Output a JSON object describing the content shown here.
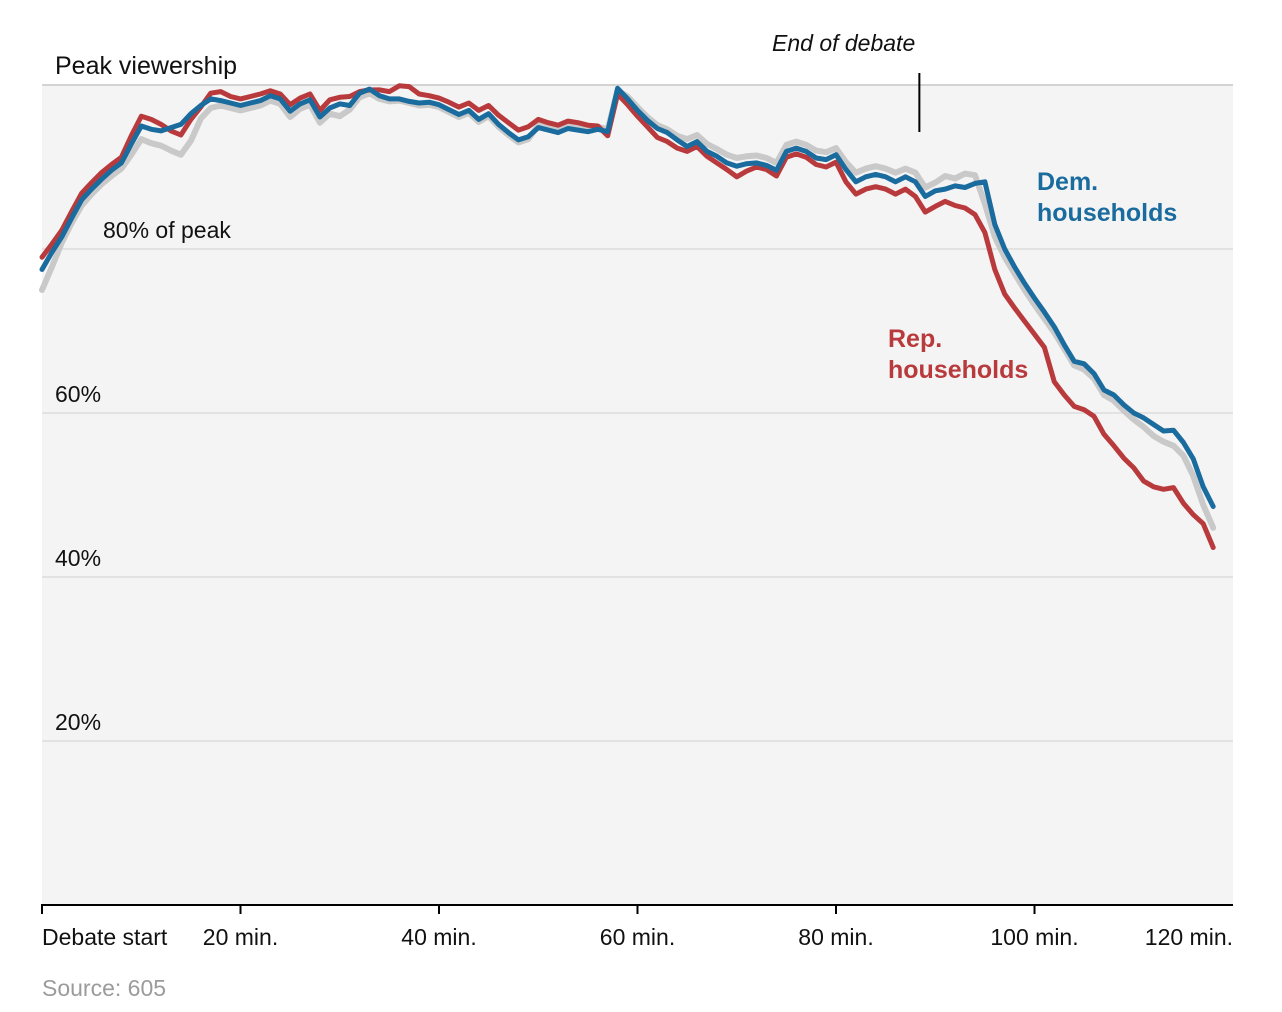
{
  "title": "Peak viewership",
  "annotation": {
    "label": "End of debate",
    "x_minute": 88.4
  },
  "legend": {
    "dem": "Dem.\nhouseholds",
    "rep": "Rep.\nhouseholds"
  },
  "source": "Source: 605",
  "colors": {
    "dem": "#1a6b9e",
    "rep": "#b93a3c",
    "gray": "#c9c9c9",
    "plot_bg": "#f4f4f4",
    "grid": "#dcdcdc",
    "grid_top": "#c6c6c6",
    "axis": "#000000",
    "text": "#111111",
    "source_text": "#9b9b9b"
  },
  "chart_data": {
    "type": "line",
    "title": "Peak viewership",
    "x_unit": "min",
    "xlim": [
      0,
      120
    ],
    "ylim": [
      0,
      100
    ],
    "grid": true,
    "x_minutes": {
      "start": 0,
      "step": 1,
      "end": 118
    },
    "y_ticks": [
      {
        "value": 80,
        "label": "80% of peak"
      },
      {
        "value": 60,
        "label": "60%"
      },
      {
        "value": 40,
        "label": "40%"
      },
      {
        "value": 20,
        "label": "20%"
      }
    ],
    "x_ticks": [
      {
        "value": 0,
        "label": "Debate start",
        "tick": true,
        "align": "left"
      },
      {
        "value": 20,
        "label": "20 min.",
        "tick": true,
        "align": "center"
      },
      {
        "value": 40,
        "label": "40 min.",
        "tick": true,
        "align": "center"
      },
      {
        "value": 60,
        "label": "60 min.",
        "tick": true,
        "align": "center"
      },
      {
        "value": 80,
        "label": "80 min.",
        "tick": true,
        "align": "center"
      },
      {
        "value": 100,
        "label": "100 min.",
        "tick": true,
        "align": "center"
      },
      {
        "value": 120,
        "label": "120 min.",
        "tick": false,
        "align": "right"
      }
    ],
    "annotations": [
      {
        "label": "End of debate",
        "x": 88.4
      }
    ],
    "series": [
      {
        "name": "Dem. households",
        "color_key": "dem",
        "values": [
          77.5,
          79.6,
          81.5,
          83.8,
          86.0,
          87.3,
          88.5,
          89.6,
          90.5,
          92.8,
          95.0,
          94.6,
          94.4,
          94.8,
          95.2,
          96.5,
          97.5,
          98.3,
          98.1,
          97.8,
          97.5,
          97.8,
          98.1,
          98.7,
          98.3,
          96.8,
          97.7,
          98.2,
          96.1,
          97.2,
          97.7,
          97.5,
          99.0,
          99.5,
          98.7,
          98.3,
          98.3,
          98.0,
          97.8,
          97.9,
          97.6,
          97.0,
          96.4,
          96.9,
          95.8,
          96.5,
          95.2,
          94.2,
          93.3,
          93.7,
          94.8,
          94.5,
          94.2,
          94.7,
          94.5,
          94.3,
          94.6,
          94.3,
          99.6,
          98.3,
          96.9,
          95.7,
          94.7,
          94.2,
          93.3,
          92.5,
          93.1,
          91.9,
          91.3,
          90.5,
          90.1,
          90.4,
          90.5,
          90.2,
          89.6,
          91.9,
          92.3,
          91.9,
          91.1,
          90.9,
          91.5,
          89.7,
          88.2,
          88.8,
          89.1,
          88.8,
          88.2,
          88.8,
          88.2,
          86.4,
          87.1,
          87.3,
          87.7,
          87.5,
          88.0,
          88.2,
          83.0,
          80.0,
          77.8,
          75.8,
          74.0,
          72.3,
          70.5,
          68.3,
          66.3,
          66.0,
          64.8,
          62.8,
          62.2,
          61.0,
          60.0,
          59.4,
          58.6,
          57.8,
          57.9,
          56.4,
          54.4,
          51.0,
          48.6
        ]
      },
      {
        "name": "Rep. households",
        "color_key": "rep",
        "values": [
          79.0,
          80.6,
          82.3,
          84.6,
          86.8,
          88.1,
          89.3,
          90.3,
          91.2,
          93.8,
          96.2,
          95.8,
          95.2,
          94.4,
          93.9,
          95.8,
          97.3,
          99.0,
          99.2,
          98.6,
          98.3,
          98.6,
          98.9,
          99.3,
          98.9,
          97.6,
          98.4,
          98.9,
          96.9,
          98.2,
          98.5,
          98.6,
          99.2,
          99.4,
          99.4,
          99.2,
          99.9,
          99.8,
          98.9,
          98.7,
          98.4,
          97.9,
          97.3,
          97.8,
          96.9,
          97.5,
          96.3,
          95.4,
          94.5,
          94.9,
          95.8,
          95.4,
          95.1,
          95.6,
          95.4,
          95.1,
          95.0,
          93.8,
          98.9,
          97.6,
          96.2,
          94.9,
          93.6,
          93.1,
          92.3,
          91.9,
          92.5,
          91.3,
          90.5,
          89.7,
          88.8,
          89.5,
          90.0,
          89.7,
          88.9,
          91.2,
          91.6,
          91.2,
          90.3,
          90.0,
          90.6,
          88.2,
          86.7,
          87.3,
          87.6,
          87.3,
          86.7,
          87.3,
          86.4,
          84.5,
          85.2,
          85.8,
          85.3,
          85.0,
          84.2,
          82.0,
          77.5,
          74.5,
          72.8,
          71.2,
          69.6,
          68.0,
          63.8,
          62.2,
          60.8,
          60.4,
          59.6,
          57.4,
          56.0,
          54.5,
          53.3,
          51.7,
          51.0,
          50.7,
          50.9,
          49.0,
          47.6,
          46.5,
          43.6
        ]
      },
      {
        "name": "Unlabeled (gray)",
        "color_key": "gray",
        "values": [
          75.0,
          77.8,
          80.8,
          83.2,
          85.3,
          86.7,
          87.9,
          88.9,
          89.8,
          91.5,
          93.4,
          92.9,
          92.6,
          92.0,
          91.5,
          93.2,
          95.9,
          97.2,
          97.5,
          97.2,
          96.9,
          97.2,
          97.5,
          98.1,
          97.7,
          96.1,
          97.1,
          97.6,
          95.4,
          96.5,
          96.2,
          97.0,
          98.5,
          99.0,
          98.3,
          98.0,
          98.1,
          97.8,
          97.5,
          97.6,
          97.3,
          96.7,
          96.1,
          96.6,
          95.5,
          96.2,
          94.9,
          93.9,
          93.0,
          93.4,
          95.1,
          94.9,
          94.6,
          95.0,
          94.8,
          94.6,
          94.9,
          94.6,
          99.3,
          98.6,
          97.3,
          96.1,
          95.1,
          94.6,
          93.8,
          93.4,
          93.9,
          92.8,
          92.2,
          91.5,
          91.1,
          91.3,
          91.4,
          91.1,
          90.5,
          92.7,
          93.1,
          92.7,
          92.0,
          91.8,
          92.3,
          90.6,
          89.3,
          89.8,
          90.1,
          89.8,
          89.3,
          89.8,
          89.3,
          87.5,
          88.1,
          88.9,
          88.6,
          89.2,
          89.0,
          85.5,
          81.5,
          79.0,
          77.0,
          75.0,
          73.2,
          71.5,
          69.8,
          67.8,
          65.8,
          65.3,
          64.2,
          62.2,
          61.5,
          60.3,
          59.2,
          58.3,
          57.2,
          56.5,
          56.0,
          54.8,
          52.3,
          48.8,
          46.0
        ]
      }
    ]
  }
}
